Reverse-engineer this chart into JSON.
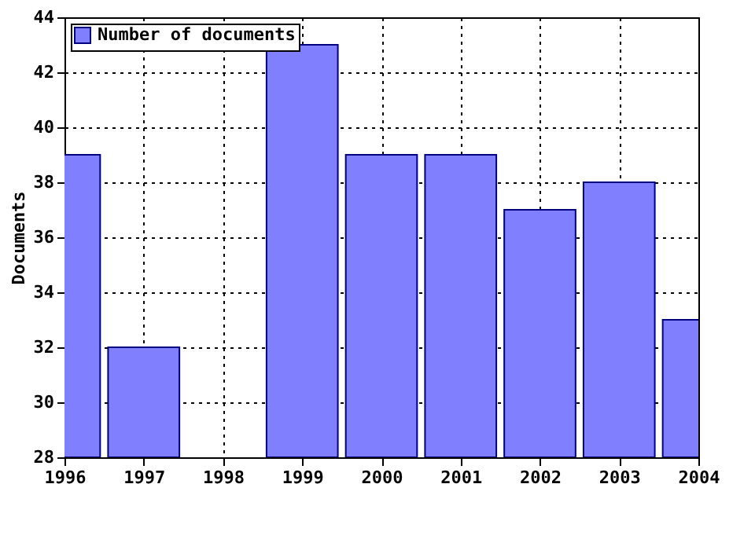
{
  "chart_data": {
    "type": "bar",
    "ylabel": "Documents",
    "x": [
      1996,
      1997,
      1998,
      1999,
      2000,
      2001,
      2002,
      2003,
      2004
    ],
    "series": [
      {
        "name": "Number of documents",
        "color": "#8080ff",
        "values": [
          39,
          32,
          null,
          43,
          39,
          39,
          37,
          38,
          33
        ]
      }
    ],
    "xlim": [
      1996,
      2004
    ],
    "xticks": [
      1996,
      1997,
      1998,
      1999,
      2000,
      2001,
      2002,
      2003,
      2004
    ],
    "ylim": [
      28,
      44
    ],
    "yticks": [
      28,
      30,
      32,
      34,
      36,
      38,
      40,
      42,
      44
    ],
    "grid": true,
    "legend": "top left"
  }
}
